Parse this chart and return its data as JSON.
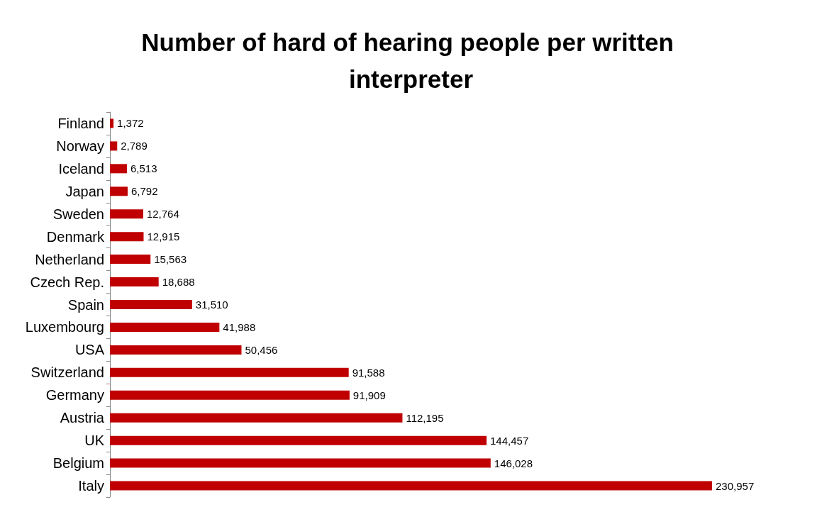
{
  "chart_data": {
    "type": "bar",
    "title": "Number of hard of hearing people per written interpreter",
    "orientation": "horizontal",
    "categories": [
      "Finland",
      "Norway",
      "Iceland",
      "Japan",
      "Sweden",
      "Denmark",
      "Netherland",
      "Czech Rep.",
      "Spain",
      "Luxembourg",
      "USA",
      "Switzerland",
      "Germany",
      "Austria",
      "UK",
      "Belgium",
      "Italy"
    ],
    "values": [
      1372,
      2789,
      6513,
      6792,
      12764,
      12915,
      15563,
      18688,
      31510,
      41988,
      50456,
      91588,
      91909,
      112195,
      144457,
      146028,
      230957
    ],
    "value_labels": [
      "1,372",
      "2,789",
      "6,513",
      "6,792",
      "12,764",
      "12,915",
      "15,563",
      "18,688",
      "31,510",
      "41,988",
      "50,456",
      "91,588",
      "91,909",
      "112,195",
      "144,457",
      "146,028",
      "230,957"
    ],
    "color": "#c00000"
  }
}
